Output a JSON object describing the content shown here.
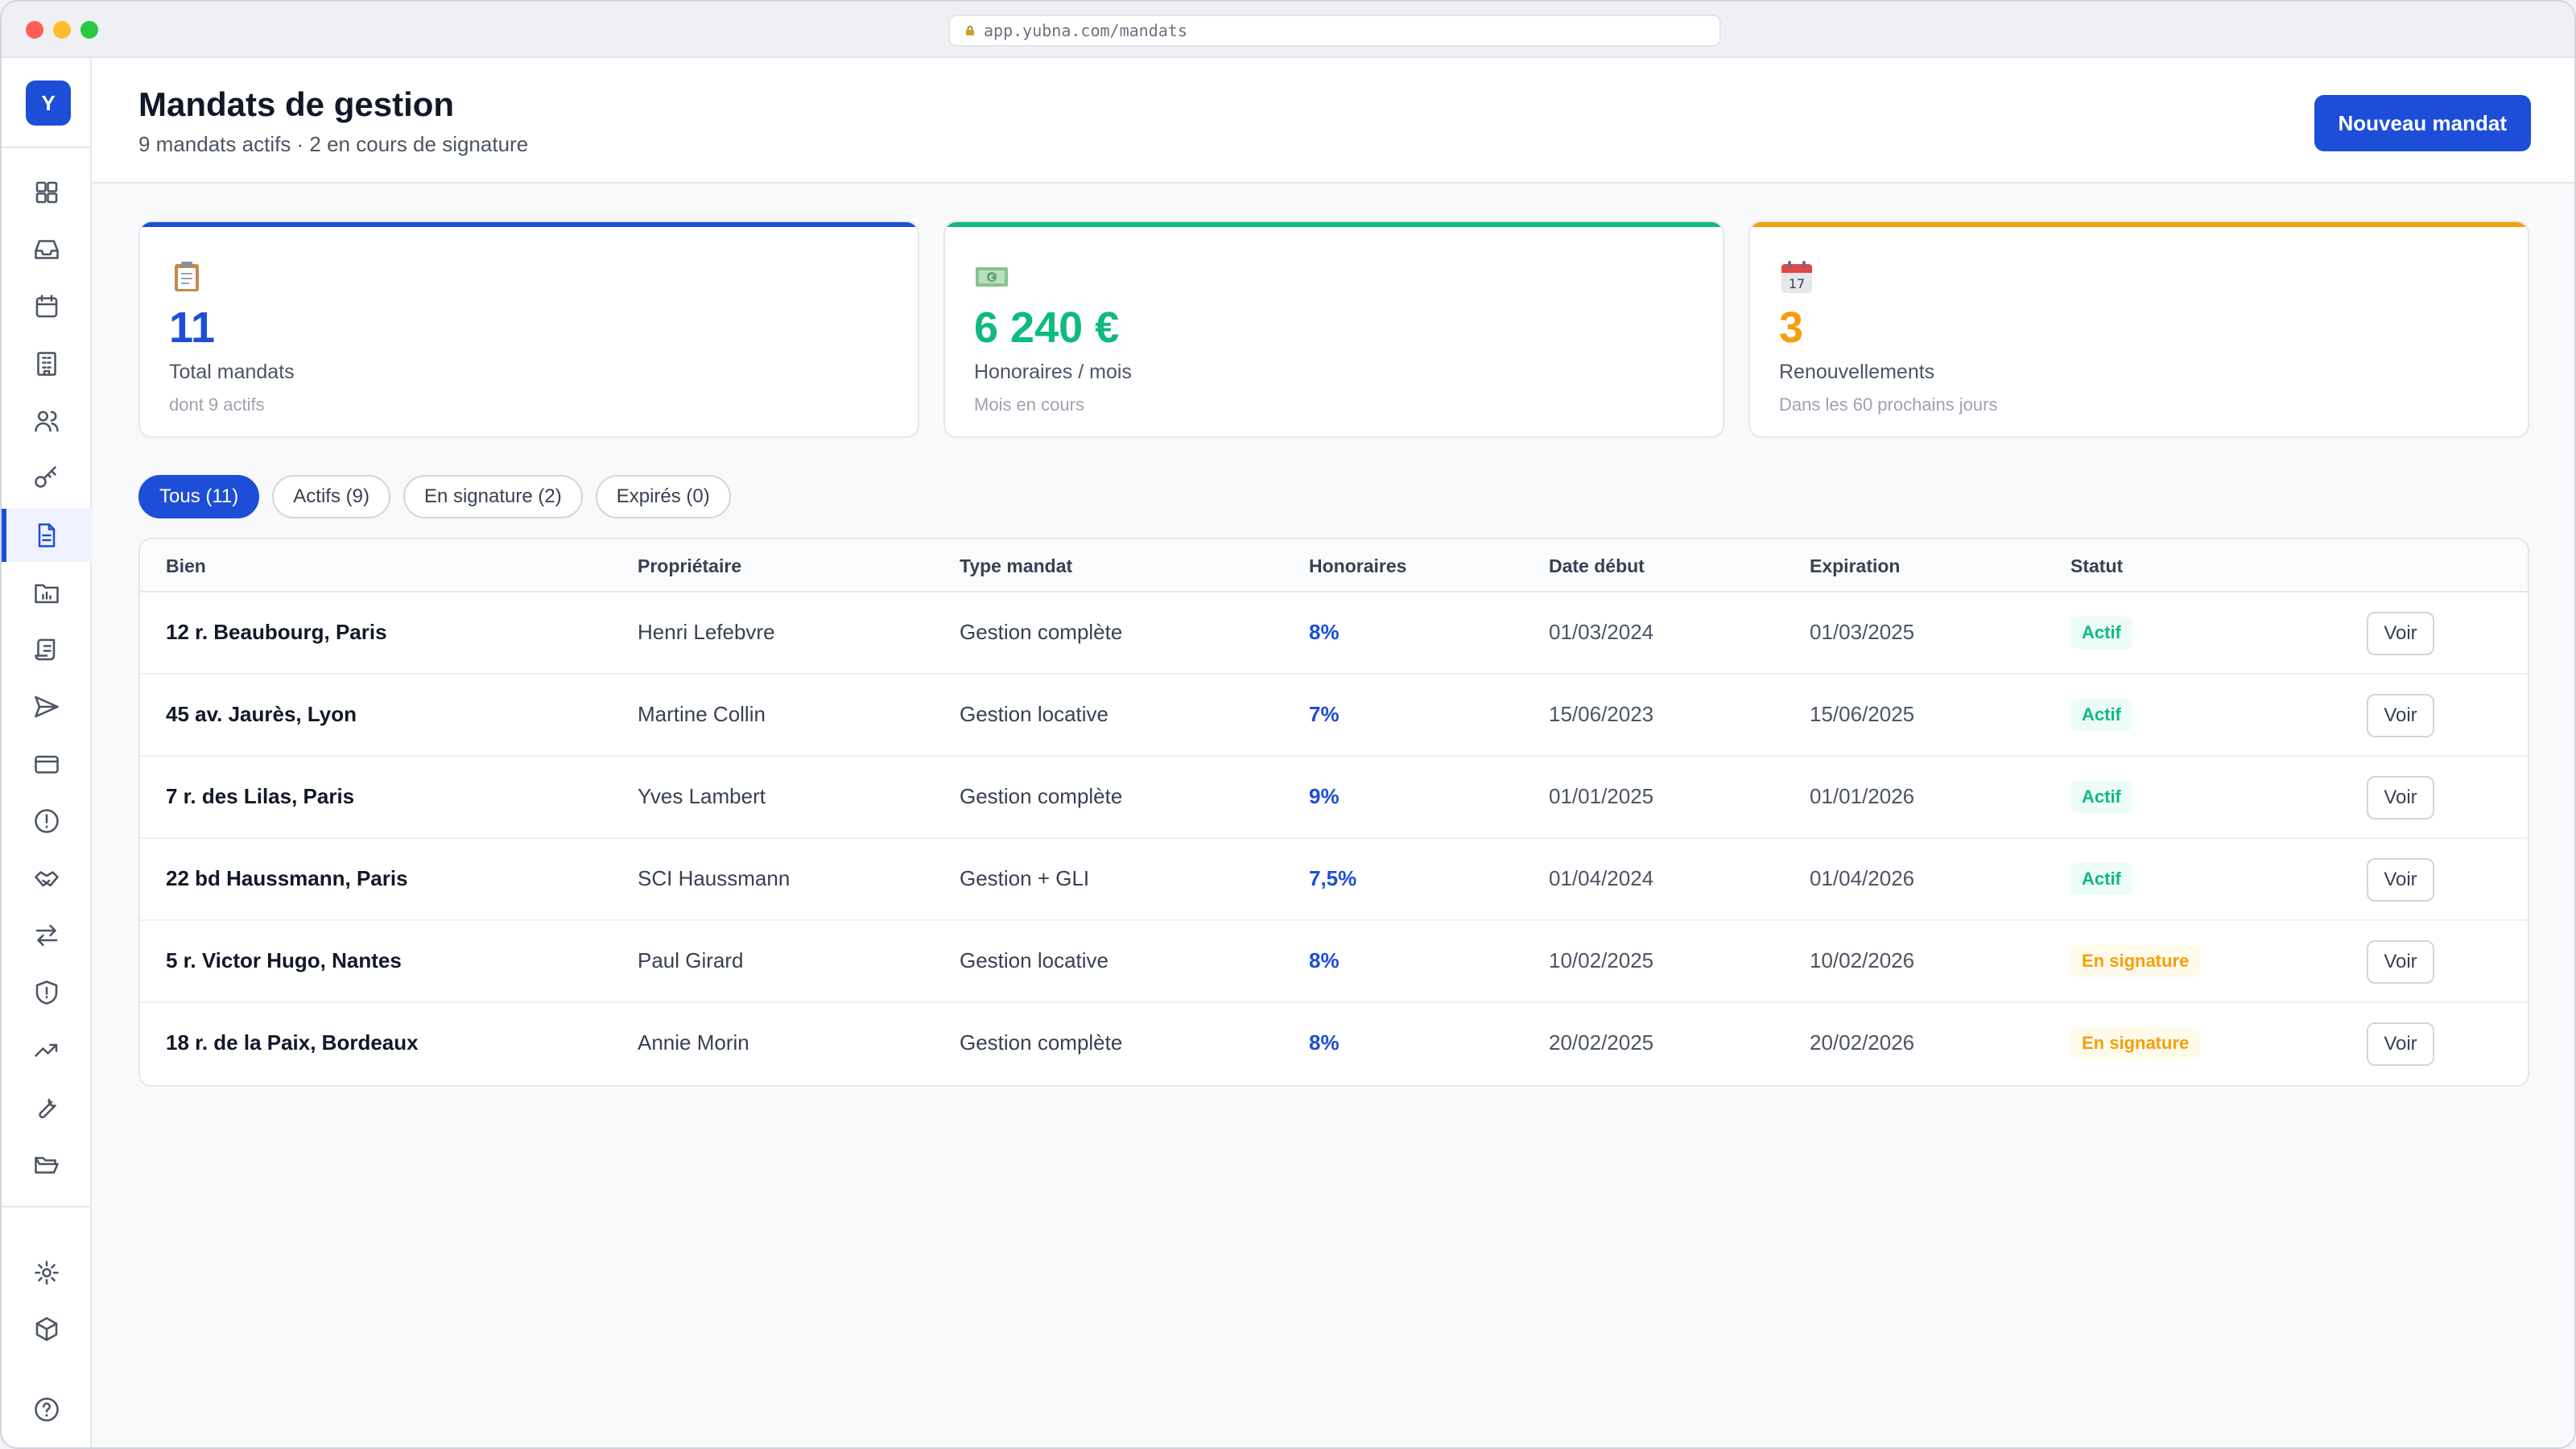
{
  "browser": {
    "url": "app.yubna.com/mandats"
  },
  "app": {
    "logo_letter": "Y"
  },
  "sidebar": {
    "items": [
      {
        "icon": "dashboard-icon"
      },
      {
        "icon": "inbox-icon"
      },
      {
        "icon": "calendar-icon"
      },
      {
        "icon": "building-icon"
      },
      {
        "icon": "users-icon"
      },
      {
        "icon": "key-icon"
      },
      {
        "icon": "document-icon",
        "active": true
      },
      {
        "icon": "folder-chart-icon"
      },
      {
        "icon": "scroll-icon"
      },
      {
        "icon": "send-icon"
      },
      {
        "icon": "credit-card-icon"
      },
      {
        "icon": "alert-icon"
      },
      {
        "icon": "handshake-icon"
      },
      {
        "icon": "transfer-icon"
      },
      {
        "icon": "shield-icon"
      },
      {
        "icon": "trending-up-icon"
      },
      {
        "icon": "wrench-icon"
      },
      {
        "icon": "folder-open-icon"
      }
    ],
    "bottom_items": [
      {
        "icon": "gear-icon"
      },
      {
        "icon": "package-icon"
      },
      {
        "icon": "help-icon"
      }
    ]
  },
  "header": {
    "title": "Mandats de gestion",
    "subtitle": "9 mandats actifs · 2 en cours de signature",
    "new_button": "Nouveau mandat"
  },
  "cards": [
    {
      "icon": "clipboard-icon",
      "value": "11",
      "label": "Total mandats",
      "sub": "dont 9 actifs",
      "accent": "#1d4ed8"
    },
    {
      "icon": "banknote-icon",
      "value": "6 240 €",
      "label": "Honoraires / mois",
      "sub": "Mois en cours",
      "accent": "#10b981"
    },
    {
      "icon": "calendar-17-icon",
      "value": "3",
      "label": "Renouvellements",
      "sub": "Dans les 60 prochains jours",
      "accent": "#f59e0b"
    }
  ],
  "filters": [
    {
      "label": "Tous (11)",
      "active": true
    },
    {
      "label": "Actifs (9)"
    },
    {
      "label": "En signature (2)"
    },
    {
      "label": "Expirés (0)"
    }
  ],
  "table": {
    "columns": [
      "Bien",
      "Propriétaire",
      "Type mandat",
      "Honoraires",
      "Date début",
      "Expiration",
      "Statut"
    ],
    "action_label": "Voir",
    "rows": [
      {
        "bien": "12 r. Beaubourg, Paris",
        "proprietaire": "Henri Lefebvre",
        "type": "Gestion complète",
        "honoraires": "8%",
        "debut": "01/03/2024",
        "expiration": "01/03/2025",
        "statut": "Actif"
      },
      {
        "bien": "45 av. Jaurès, Lyon",
        "proprietaire": "Martine Collin",
        "type": "Gestion locative",
        "honoraires": "7%",
        "debut": "15/06/2023",
        "expiration": "15/06/2025",
        "statut": "Actif"
      },
      {
        "bien": "7 r. des Lilas, Paris",
        "proprietaire": "Yves Lambert",
        "type": "Gestion complète",
        "honoraires": "9%",
        "debut": "01/01/2025",
        "expiration": "01/01/2026",
        "statut": "Actif"
      },
      {
        "bien": "22 bd Haussmann, Paris",
        "proprietaire": "SCI Haussmann",
        "type": "Gestion + GLI",
        "honoraires": "7,5%",
        "debut": "01/04/2024",
        "expiration": "01/04/2026",
        "statut": "Actif"
      },
      {
        "bien": "5 r. Victor Hugo, Nantes",
        "proprietaire": "Paul Girard",
        "type": "Gestion locative",
        "honoraires": "8%",
        "debut": "10/02/2025",
        "expiration": "10/02/2026",
        "statut": "En signature"
      },
      {
        "bien": "18 r. de la Paix, Bordeaux",
        "proprietaire": "Annie Morin",
        "type": "Gestion complète",
        "honoraires": "8%",
        "debut": "20/02/2025",
        "expiration": "20/02/2026",
        "statut": "En signature"
      }
    ]
  }
}
